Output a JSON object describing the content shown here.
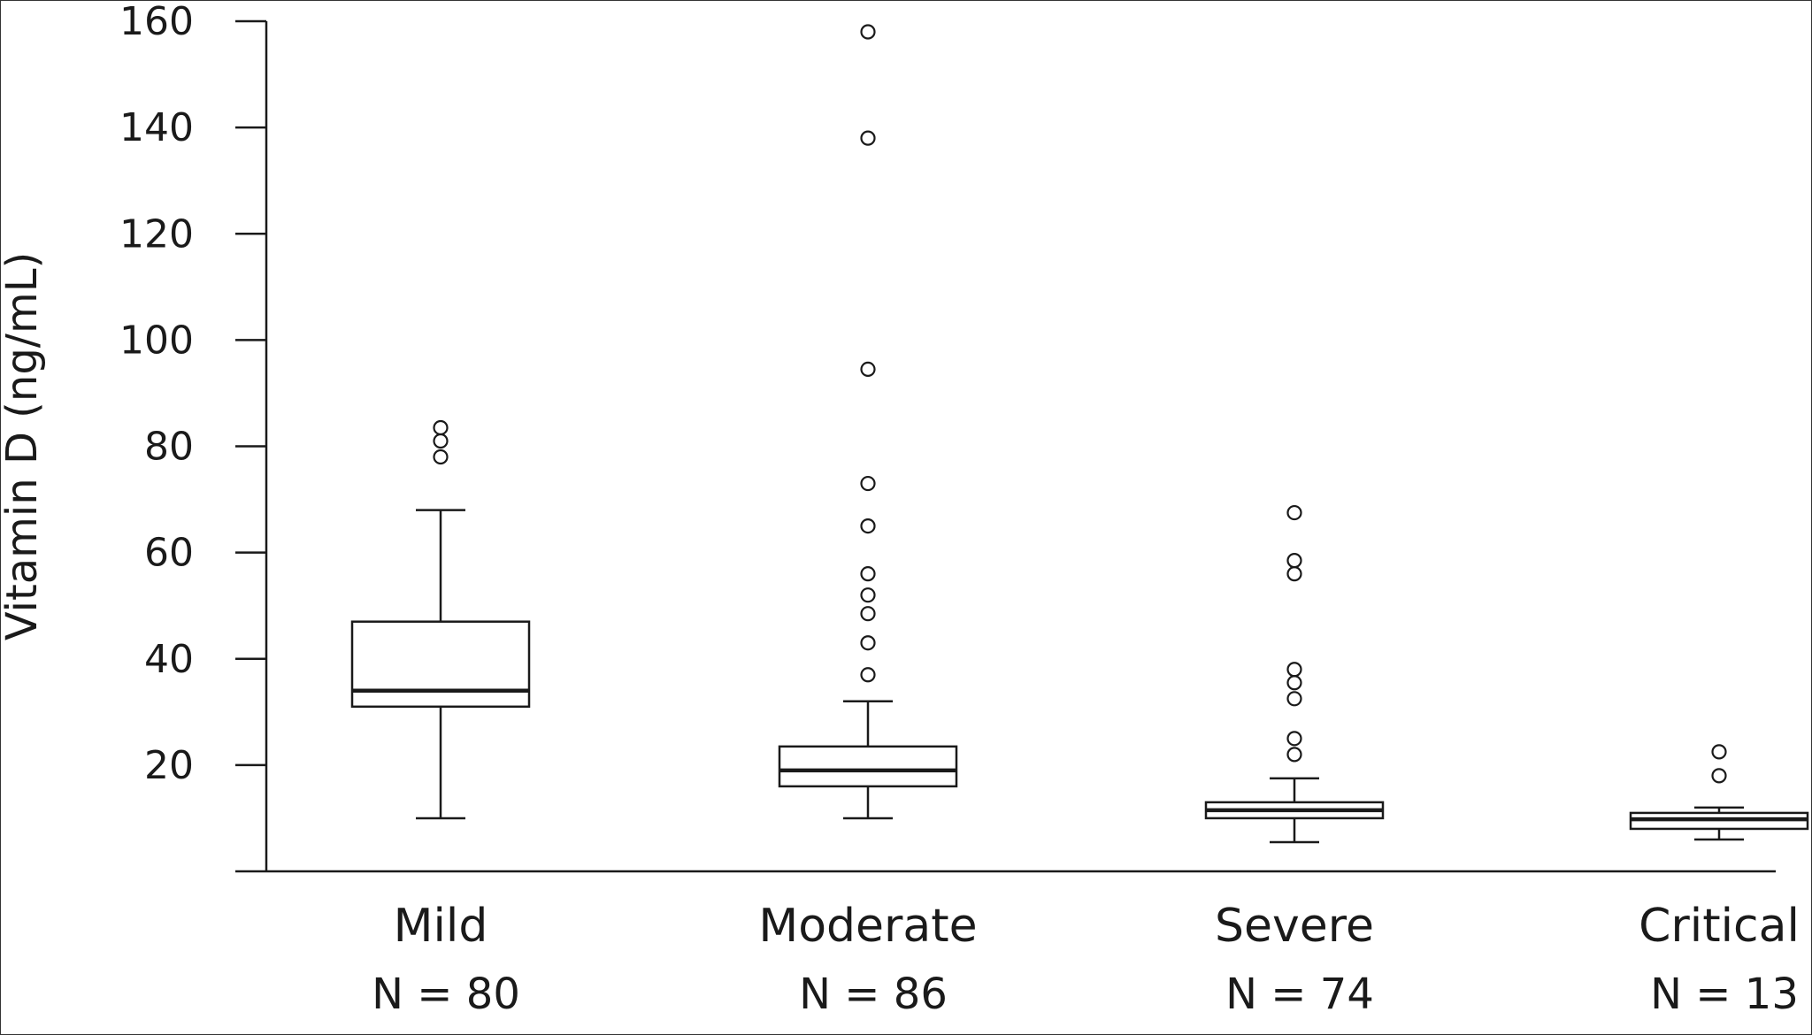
{
  "chart_data": {
    "type": "box",
    "ylabel": "Vitamin D (ng/mL)",
    "xlabel": "",
    "ylim": [
      0,
      160
    ],
    "yticks": [
      "20",
      "40",
      "60",
      "80",
      "100",
      "120",
      "140",
      "160"
    ],
    "grid": false,
    "categories": [
      "Mild",
      "Moderate",
      "Severe",
      "Critical"
    ],
    "n_labels": [
      "N = 80",
      "N = 86",
      "N = 74",
      "N = 13"
    ],
    "boxes": [
      {
        "category": "Mild",
        "n": 80,
        "whisker_low": 10,
        "q1": 31,
        "median": 34,
        "q3": 47,
        "whisker_high": 68,
        "outliers": [
          78,
          81,
          83.5
        ]
      },
      {
        "category": "Moderate",
        "n": 86,
        "whisker_low": 10,
        "q1": 16,
        "median": 19,
        "q3": 23.5,
        "whisker_high": 32,
        "outliers": [
          37,
          43,
          48.5,
          52,
          56,
          65,
          73,
          94.5,
          138,
          158
        ]
      },
      {
        "category": "Severe",
        "n": 74,
        "whisker_low": 5.5,
        "q1": 10,
        "median": 11.5,
        "q3": 13,
        "whisker_high": 17.5,
        "outliers": [
          22,
          25,
          32.5,
          35.5,
          38,
          56,
          58.5,
          67.5
        ]
      },
      {
        "category": "Critical",
        "n": 13,
        "whisker_low": 6,
        "q1": 8,
        "median": 9.8,
        "q3": 11,
        "whisker_high": 12,
        "outliers": [
          18,
          22.5
        ]
      }
    ]
  }
}
